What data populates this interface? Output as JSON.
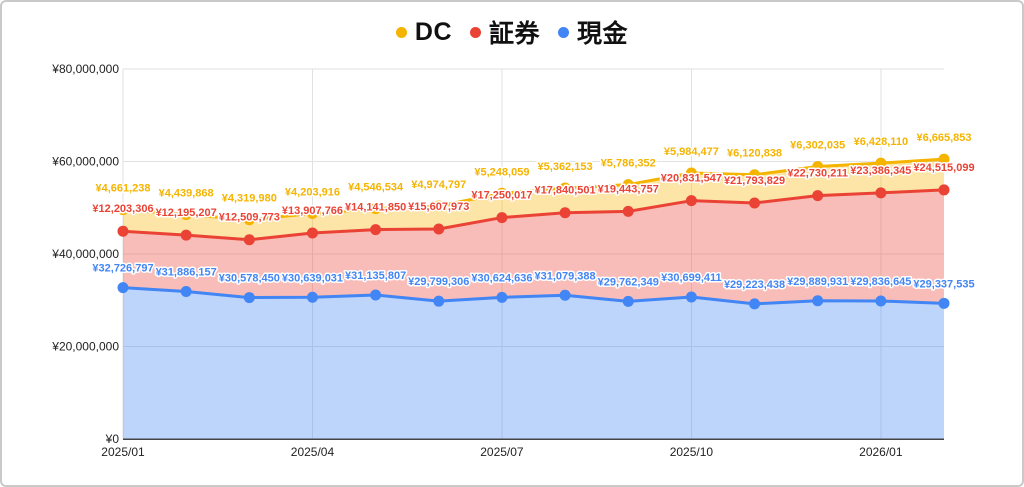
{
  "legend": {
    "items": [
      {
        "id": "dc",
        "label": "DC",
        "color": "#F5B400"
      },
      {
        "id": "shoken",
        "label": "証券",
        "color": "#EA4335"
      },
      {
        "id": "genkin",
        "label": "現金",
        "color": "#4285F4"
      }
    ]
  },
  "chart_data": {
    "type": "area",
    "stacked": true,
    "grid": true,
    "legend_position": "top-center",
    "currency_prefix": "¥",
    "x": [
      "2025/01",
      "2025/02",
      "2025/03",
      "2025/04",
      "2025/05",
      "2025/06",
      "2025/07",
      "2025/08",
      "2025/09",
      "2025/10",
      "2025/11",
      "2025/12",
      "2026/01",
      "2026/02"
    ],
    "x_ticks": [
      {
        "index": 0,
        "label": "2025/01"
      },
      {
        "index": 3,
        "label": "2025/04"
      },
      {
        "index": 6,
        "label": "2025/07"
      },
      {
        "index": 9,
        "label": "2025/10"
      },
      {
        "index": 12,
        "label": "2026/01"
      }
    ],
    "y_ticks": [
      {
        "value": 0,
        "label": "¥0"
      },
      {
        "value": 20000000,
        "label": "¥20,000,000"
      },
      {
        "value": 40000000,
        "label": "¥40,000,000"
      },
      {
        "value": 60000000,
        "label": "¥60,000,000"
      },
      {
        "value": 80000000,
        "label": "¥80,000,000"
      }
    ],
    "ylim": [
      0,
      80000000
    ],
    "series": [
      {
        "name": "現金",
        "color": "#4285F4",
        "fill_rgba": "rgba(66,133,244,0.35)",
        "label_dy": -16,
        "values": [
          32726797,
          31886157,
          30578450,
          30639031,
          31135807,
          29799306,
          30624636,
          31079388,
          29762349,
          30699411,
          29223438,
          29889931,
          29836645,
          29337535
        ]
      },
      {
        "name": "証券",
        "color": "#EA4335",
        "fill_rgba": "rgba(234,67,53,0.35)",
        "label_dy": -19,
        "values": [
          12203306,
          12195207,
          12509773,
          13907766,
          14141850,
          15607973,
          17250017,
          17840501,
          19443757,
          20831547,
          21793829,
          22730211,
          23386345,
          24515099
        ]
      },
      {
        "name": "DC",
        "color": "#F5B400",
        "fill_rgba": "rgba(245,180,0,0.35)",
        "label_dy": -18,
        "values": [
          4661238,
          4439868,
          4319980,
          4203916,
          4546534,
          4974797,
          5248059,
          5362153,
          5786352,
          5984477,
          6120838,
          6302035,
          6428110,
          6665853
        ]
      }
    ]
  }
}
